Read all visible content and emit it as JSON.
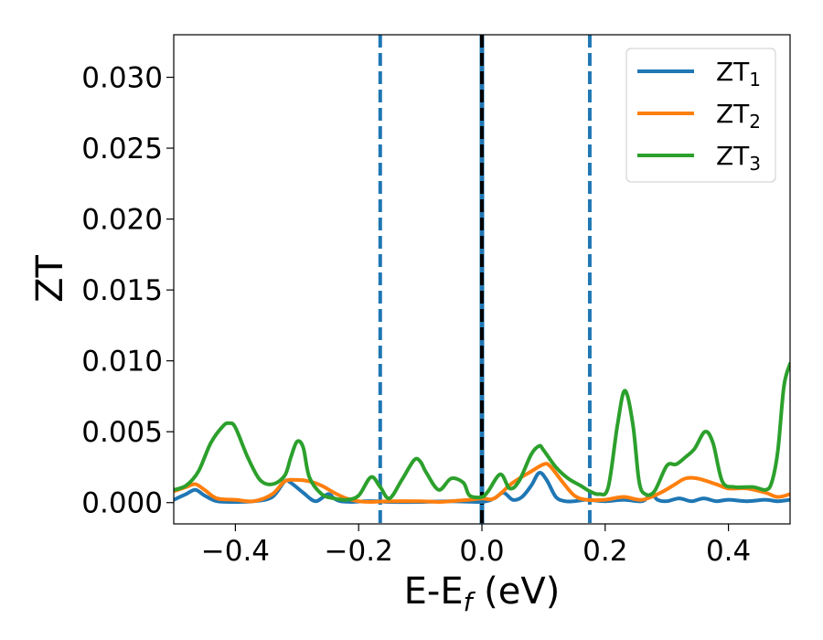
{
  "chart_data": {
    "type": "line",
    "xlabel_main": "E-E",
    "xlabel_sub": "f",
    "xlabel_unit": " (eV)",
    "ylabel": "ZT",
    "xlim": [
      -0.5,
      0.5
    ],
    "ylim": [
      -0.0015,
      0.033
    ],
    "x_ticks": [
      -0.4,
      -0.2,
      0.0,
      0.2,
      0.4
    ],
    "x_tick_labels": [
      "−0.4",
      "−0.2",
      "0.0",
      "0.2",
      "0.4"
    ],
    "y_ticks": [
      0.0,
      0.005,
      0.01,
      0.015,
      0.02,
      0.025,
      0.03
    ],
    "y_tick_labels": [
      "0.000",
      "0.005",
      "0.010",
      "0.015",
      "0.020",
      "0.025",
      "0.030"
    ],
    "grid": false,
    "legend_placement": "top-right",
    "vertical_lines": [
      {
        "x": -0.165,
        "style": "dashed",
        "color": "#1f77b4"
      },
      {
        "x": 0.0,
        "style": "solid",
        "color": "#1f77b4"
      },
      {
        "x": 0.0,
        "style": "dashed",
        "color": "#000000"
      },
      {
        "x": 0.175,
        "style": "dashed",
        "color": "#1f77b4"
      }
    ],
    "series": [
      {
        "name_main": "ZT",
        "name_sub": "1",
        "color": "#1f77b4",
        "x": [
          -0.5,
          -0.48,
          -0.465,
          -0.45,
          -0.43,
          -0.4,
          -0.37,
          -0.34,
          -0.32,
          -0.31,
          -0.29,
          -0.27,
          -0.25,
          -0.24,
          -0.23,
          -0.21,
          -0.19,
          -0.17,
          -0.15,
          -0.1,
          -0.05,
          0.0,
          0.02,
          0.035,
          0.05,
          0.065,
          0.08,
          0.093,
          0.105,
          0.12,
          0.135,
          0.15,
          0.17,
          0.2,
          0.23,
          0.26,
          0.275,
          0.285,
          0.3,
          0.32,
          0.34,
          0.36,
          0.38,
          0.4,
          0.43,
          0.46,
          0.48,
          0.5
        ],
        "y": [
          0.0002,
          0.0006,
          0.0009,
          0.0005,
          0.0001,
          5e-05,
          0.0001,
          0.0004,
          0.0015,
          0.0014,
          0.0007,
          0.0001,
          0.0006,
          0.0003,
          0.0001,
          5e-05,
          0.0001,
          0.0001,
          5e-05,
          5e-05,
          0.0001,
          5e-05,
          0.0003,
          0.0007,
          0.0002,
          0.0004,
          0.0012,
          0.0021,
          0.0016,
          0.0004,
          0.0001,
          0.0001,
          0.0002,
          0.0001,
          0.0002,
          0.0001,
          0.0006,
          0.0002,
          0.0001,
          0.0003,
          0.0001,
          0.0003,
          0.0001,
          0.0002,
          0.0001,
          0.0002,
          0.0001,
          0.0002
        ]
      },
      {
        "name_main": "ZT",
        "name_sub": "2",
        "color": "#ff7f0e",
        "x": [
          -0.5,
          -0.48,
          -0.465,
          -0.45,
          -0.43,
          -0.4,
          -0.37,
          -0.34,
          -0.32,
          -0.3,
          -0.28,
          -0.26,
          -0.24,
          -0.22,
          -0.2,
          -0.18,
          -0.15,
          -0.1,
          -0.07,
          -0.05,
          -0.02,
          0.0,
          0.02,
          0.05,
          0.08,
          0.1,
          0.11,
          0.13,
          0.15,
          0.17,
          0.2,
          0.23,
          0.26,
          0.29,
          0.31,
          0.33,
          0.35,
          0.38,
          0.4,
          0.43,
          0.46,
          0.48,
          0.5
        ],
        "y": [
          0.0008,
          0.0011,
          0.0013,
          0.0009,
          0.0003,
          0.0002,
          0.0001,
          0.0006,
          0.0015,
          0.0016,
          0.0015,
          0.0012,
          0.0007,
          0.0003,
          0.0001,
          5e-05,
          0.0001,
          0.0001,
          5e-05,
          0.0001,
          0.0002,
          0.0003,
          0.0003,
          0.0014,
          0.0022,
          0.0027,
          0.0026,
          0.0015,
          0.0005,
          0.0002,
          0.0002,
          0.0004,
          0.0002,
          0.0007,
          0.0012,
          0.0017,
          0.0017,
          0.0013,
          0.001,
          0.001,
          0.0007,
          0.0004,
          0.0006
        ]
      },
      {
        "name_main": "ZT",
        "name_sub": "3",
        "color": "#2ca02c",
        "x": [
          -0.5,
          -0.48,
          -0.46,
          -0.44,
          -0.42,
          -0.41,
          -0.4,
          -0.38,
          -0.36,
          -0.34,
          -0.32,
          -0.31,
          -0.3,
          -0.29,
          -0.28,
          -0.26,
          -0.24,
          -0.22,
          -0.2,
          -0.18,
          -0.165,
          -0.15,
          -0.13,
          -0.11,
          -0.1,
          -0.09,
          -0.07,
          -0.05,
          -0.03,
          -0.02,
          0.0,
          0.01,
          0.03,
          0.045,
          0.06,
          0.08,
          0.093,
          0.1,
          0.12,
          0.14,
          0.16,
          0.175,
          0.19,
          0.205,
          0.22,
          0.232,
          0.245,
          0.255,
          0.265,
          0.28,
          0.3,
          0.315,
          0.33,
          0.345,
          0.362,
          0.375,
          0.39,
          0.41,
          0.44,
          0.46,
          0.47,
          0.48,
          0.49,
          0.5
        ],
        "y": [
          0.0009,
          0.0012,
          0.0022,
          0.0042,
          0.0054,
          0.0056,
          0.0053,
          0.0032,
          0.0016,
          0.0013,
          0.0019,
          0.0032,
          0.0043,
          0.0039,
          0.0018,
          0.0006,
          0.0003,
          0.0002,
          0.0005,
          0.0018,
          0.0011,
          0.0003,
          0.0016,
          0.003,
          0.0029,
          0.0021,
          0.0009,
          0.0017,
          0.0014,
          0.0005,
          0.0004,
          0.0008,
          0.002,
          0.001,
          0.0015,
          0.0034,
          0.004,
          0.0037,
          0.0025,
          0.0017,
          0.0012,
          0.0008,
          0.0006,
          0.0011,
          0.0055,
          0.0079,
          0.0055,
          0.0015,
          0.0006,
          0.0008,
          0.0026,
          0.0027,
          0.0032,
          0.0038,
          0.005,
          0.0042,
          0.0015,
          0.0011,
          0.0011,
          0.0009,
          0.0014,
          0.0036,
          0.0082,
          0.0098
        ]
      }
    ]
  }
}
